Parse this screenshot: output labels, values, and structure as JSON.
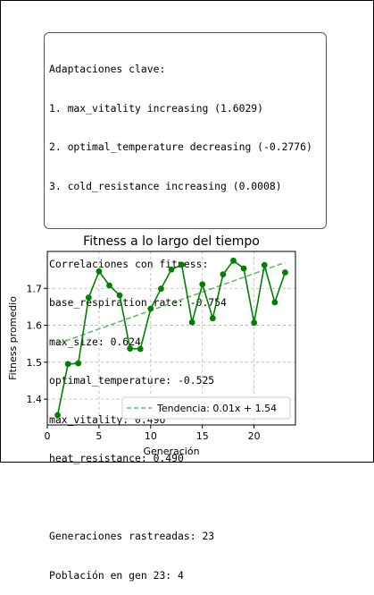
{
  "summary": {
    "adaptations_title": "Adaptaciones clave:",
    "adaptations": [
      "1. max_vitality increasing (1.6029)",
      "2. optimal_temperature decreasing (-0.2776)",
      "3. cold_resistance increasing (0.0008)"
    ],
    "correlations_title": "Correlaciones con fitness:",
    "correlations": [
      "base_respiration_rate: -0.754",
      "max_size: 0.624",
      "optimal_temperature: -0.525",
      "max_vitality: 0.496",
      "heat_resistance: 0.490"
    ],
    "generations_tracked": "Generaciones rastreadas: 23",
    "population": "Población en gen 23: 4"
  },
  "chart_data": {
    "type": "line",
    "title": "Fitness a lo largo del tiempo",
    "xlabel": "Generación",
    "ylabel": "Fitness promedio",
    "xlim": [
      0,
      24
    ],
    "ylim": [
      1.33,
      1.8
    ],
    "xticks": [
      0,
      5,
      10,
      15,
      20
    ],
    "yticks": [
      1.4,
      1.5,
      1.6,
      1.7
    ],
    "grid": true,
    "series": [
      {
        "x": [
          1,
          2,
          3,
          4,
          5,
          6,
          7,
          8,
          9,
          10,
          11,
          12,
          13,
          14,
          15,
          16,
          17,
          18,
          19,
          20,
          21,
          22,
          23
        ],
        "values": [
          1.357,
          1.495,
          1.497,
          1.675,
          1.746,
          1.708,
          1.681,
          1.537,
          1.536,
          1.645,
          1.699,
          1.751,
          1.764,
          1.608,
          1.711,
          1.619,
          1.738,
          1.775,
          1.754,
          1.607,
          1.763,
          1.662,
          1.743
        ],
        "color": "#008000",
        "style": "solid-with-markers"
      }
    ],
    "trend": {
      "label": "Tendencia: 0.01x + 1.54",
      "x_range": [
        1,
        23
      ],
      "color": "#5cb85c",
      "style": "dashed"
    },
    "legend": "lower-right"
  }
}
